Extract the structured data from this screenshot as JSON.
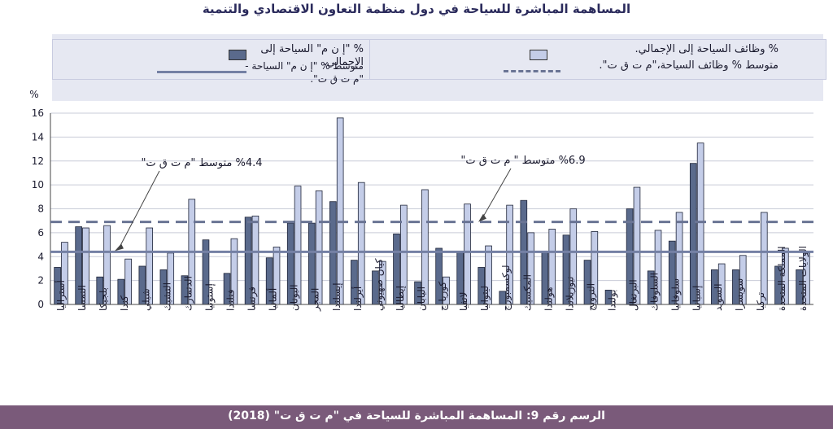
{
  "title": "المساهمة المباشرة للسياحة في دول منظمة التعاون الاقتصادي والتنمية",
  "caption": "الرسم رقم 9: المساهمة المباشرة للسياحة في \"م ت ق ت\" (2018)",
  "legend": {
    "gdp_share": "% \"إ ن م\" السياحة إلى الإجمالي.",
    "gdp_avg": "متوسط % \"إ ن م\" السياحة -\"م ت ق ت\".",
    "jobs_share": "% وظائف السياحة إلى الإجمالي.",
    "jobs_avg": "متوسط % وظائف السياحة،\"م ت ق ت\"."
  },
  "annotations": {
    "gdp_avg_label": "%4.4 متوسط \"م ت ق ت\"",
    "jobs_avg_label": "%6.9 متوسط \" م ت ق ت\""
  },
  "colors": {
    "gdp_bar": "#5a6a8c",
    "jobs_bar": "#c4cde8",
    "gdp_line": "#7480a4",
    "jobs_line": "#6a7494",
    "footer": "#7a5a7a"
  },
  "chart_data": {
    "type": "bar",
    "ylabel": "%",
    "ylim": [
      0,
      16
    ],
    "yticks": [
      0,
      2,
      4,
      6,
      8,
      10,
      12,
      14,
      16
    ],
    "categories": [
      "أستراليا",
      "النمسا",
      "بلجيكا",
      "كندا",
      "شيلي",
      "التشيك",
      "الدنمارك",
      "إستونيا",
      "فنلندا",
      "فرنسا",
      "ألمانيا",
      "اليونان",
      "المجر",
      "إيسلندا",
      "أيرلندا",
      "كيان صهيوني",
      "إيطاليا",
      "اليابان",
      "كوريا ج",
      "لاتفيا",
      "ليتوانيا",
      "لوكسمبورج",
      "المكسيك",
      "هولندا",
      "نيوزيلاندا",
      "النرويج",
      "بولندا",
      "البرتغال",
      "السلوفاك",
      "سلوفانيا",
      "إسبانيا",
      "السويد",
      "سويسرا",
      "تركيا",
      "المملكة المتحدة",
      "الولايات المتحدة"
    ],
    "series": [
      {
        "name": "% \"إ ن م\" السياحة إلى الإجمالي.",
        "values": [
          3.1,
          6.5,
          2.3,
          2.1,
          3.2,
          2.9,
          2.4,
          5.4,
          2.6,
          7.3,
          3.9,
          6.8,
          6.8,
          8.6,
          3.7,
          2.8,
          5.9,
          1.9,
          4.7,
          4.4,
          3.1,
          1.1,
          8.7,
          4.4,
          5.8,
          3.7,
          1.2,
          8.0,
          2.8,
          5.3,
          11.8,
          2.9,
          2.9,
          null,
          3.2,
          2.9
        ]
      },
      {
        "name": "% وظائف السياحة إلى الإجمالي.",
        "values": [
          5.2,
          6.4,
          6.6,
          3.8,
          6.4,
          4.3,
          8.8,
          null,
          5.5,
          7.4,
          4.8,
          9.9,
          9.5,
          15.6,
          10.2,
          3.6,
          8.3,
          9.6,
          2.3,
          8.4,
          4.9,
          8.3,
          6.0,
          6.3,
          8.0,
          6.1,
          null,
          9.8,
          6.2,
          7.7,
          13.5,
          3.4,
          4.1,
          7.7,
          4.7,
          4.3
        ]
      }
    ],
    "reference_lines": [
      {
        "name": "متوسط % \"إ ن م\" السياحة -\"م ت ق ت\".",
        "value": 4.4,
        "style": "solid"
      },
      {
        "name": "متوسط % وظائف السياحة،\"م ت ق ت\".",
        "value": 6.9,
        "style": "dashed"
      }
    ],
    "grid": true
  }
}
